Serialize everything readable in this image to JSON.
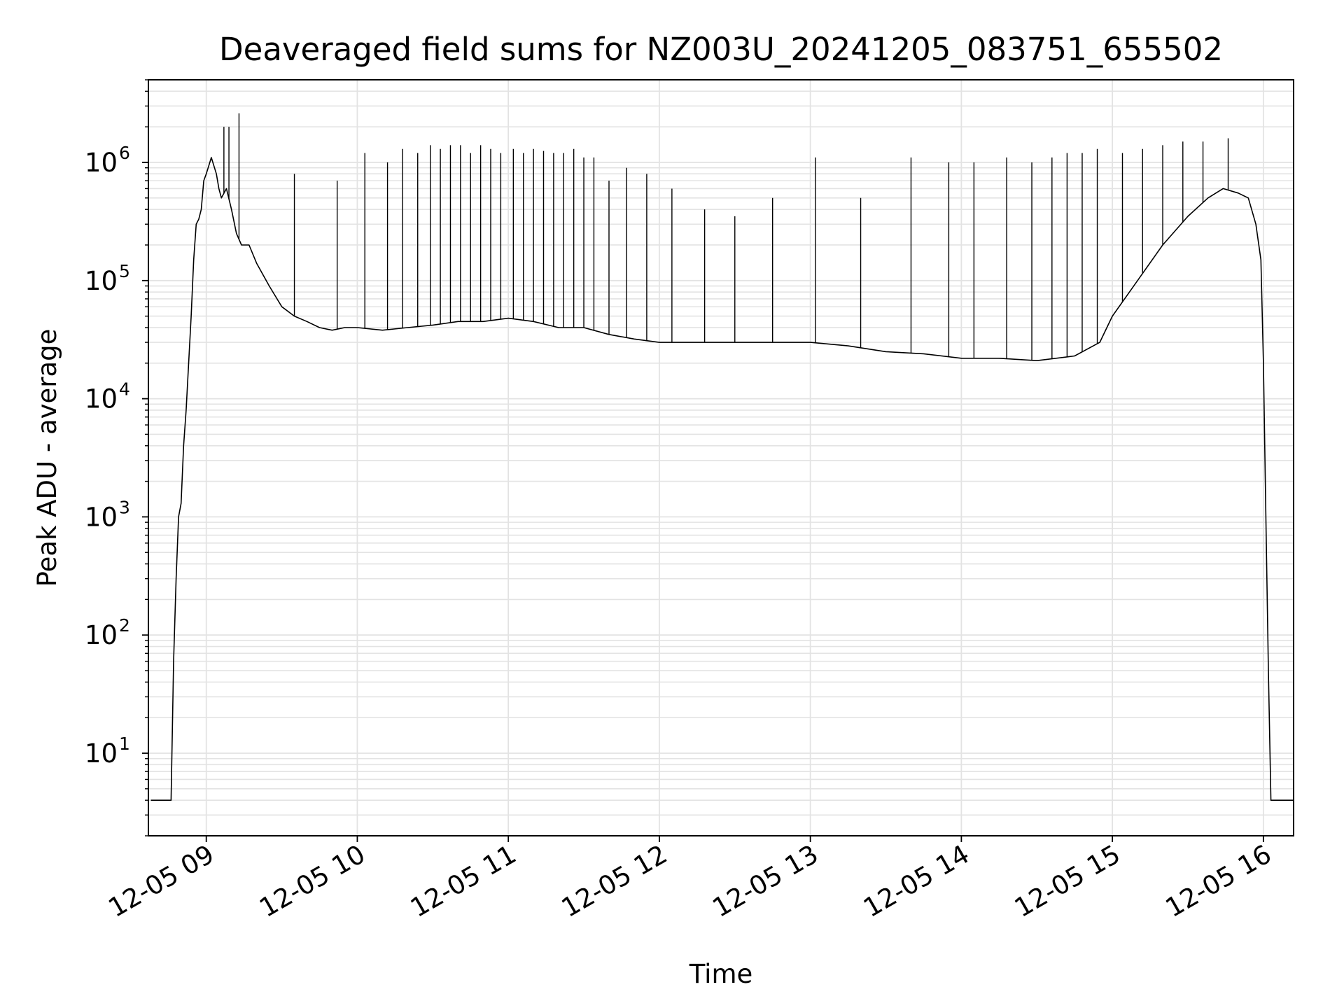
{
  "chart_data": {
    "type": "line",
    "title": "Deaveraged field sums for NZ003U_20241205_083751_655502",
    "xlabel": "Time",
    "ylabel": "Peak ADU - average",
    "yscale": "log",
    "ylim": [
      2,
      5000000
    ],
    "xlim": [
      "2024-12-05 08:37",
      "2024-12-05 16:12"
    ],
    "grid": true,
    "line_color": "#000000",
    "grid_color": "#e3e3e3",
    "x_ticks": [
      {
        "value": "2024-12-05 09:00",
        "label": "12-05 09"
      },
      {
        "value": "2024-12-05 10:00",
        "label": "12-05 10"
      },
      {
        "value": "2024-12-05 11:00",
        "label": "12-05 11"
      },
      {
        "value": "2024-12-05 12:00",
        "label": "12-05 12"
      },
      {
        "value": "2024-12-05 13:00",
        "label": "12-05 13"
      },
      {
        "value": "2024-12-05 14:00",
        "label": "12-05 14"
      },
      {
        "value": "2024-12-05 15:00",
        "label": "12-05 15"
      },
      {
        "value": "2024-12-05 16:00",
        "label": "12-05 16"
      }
    ],
    "y_ticks": [
      {
        "value": 10,
        "base": "10",
        "exp": "1"
      },
      {
        "value": 100,
        "base": "10",
        "exp": "2"
      },
      {
        "value": 1000,
        "base": "10",
        "exp": "3"
      },
      {
        "value": 10000,
        "base": "10",
        "exp": "4"
      },
      {
        "value": 100000,
        "base": "10",
        "exp": "5"
      },
      {
        "value": 1000000,
        "base": "10",
        "exp": "6"
      }
    ],
    "series": [
      {
        "x": [
          "2024-12-05 08:38",
          "2024-12-05 08:46",
          "2024-12-05 08:47",
          "2024-12-05 08:48",
          "2024-12-05 08:49",
          "2024-12-05 08:50",
          "2024-12-05 08:51",
          "2024-12-05 08:52",
          "2024-12-05 08:53",
          "2024-12-05 08:54",
          "2024-12-05 08:55",
          "2024-12-05 08:56",
          "2024-12-05 08:57",
          "2024-12-05 08:58",
          "2024-12-05 08:59",
          "2024-12-05 09:00",
          "2024-12-05 09:02",
          "2024-12-05 09:04",
          "2024-12-05 09:05",
          "2024-12-05 09:06",
          "2024-12-05 09:08",
          "2024-12-05 09:10",
          "2024-12-05 09:12",
          "2024-12-05 09:14",
          "2024-12-05 09:17",
          "2024-12-05 09:20",
          "2024-12-05 09:25",
          "2024-12-05 09:30",
          "2024-12-05 09:35",
          "2024-12-05 09:40",
          "2024-12-05 09:45",
          "2024-12-05 09:50",
          "2024-12-05 09:55",
          "2024-12-05 10:00",
          "2024-12-05 10:10",
          "2024-12-05 10:20",
          "2024-12-05 10:30",
          "2024-12-05 10:40",
          "2024-12-05 10:50",
          "2024-12-05 11:00",
          "2024-12-05 11:10",
          "2024-12-05 11:20",
          "2024-12-05 11:30",
          "2024-12-05 11:40",
          "2024-12-05 11:50",
          "2024-12-05 12:00",
          "2024-12-05 12:15",
          "2024-12-05 12:30",
          "2024-12-05 12:45",
          "2024-12-05 13:00",
          "2024-12-05 13:15",
          "2024-12-05 13:30",
          "2024-12-05 13:45",
          "2024-12-05 14:00",
          "2024-12-05 14:15",
          "2024-12-05 14:30",
          "2024-12-05 14:45",
          "2024-12-05 14:55",
          "2024-12-05 15:00",
          "2024-12-05 15:10",
          "2024-12-05 15:20",
          "2024-12-05 15:30",
          "2024-12-05 15:38",
          "2024-12-05 15:44",
          "2024-12-05 15:50",
          "2024-12-05 15:54",
          "2024-12-05 15:57",
          "2024-12-05 15:59",
          "2024-12-05 16:00",
          "2024-12-05 16:01",
          "2024-12-05 16:02",
          "2024-12-05 16:03",
          "2024-12-05 16:04",
          "2024-12-05 16:12"
        ],
        "y": [
          4,
          4,
          60,
          300,
          1000,
          1300,
          4000,
          8000,
          20000,
          50000,
          150000,
          300000,
          330000,
          400000,
          700000,
          800000,
          1100000,
          800000,
          600000,
          500000,
          600000,
          400000,
          250000,
          200000,
          200000,
          140000,
          90000,
          60000,
          50000,
          45000,
          40000,
          38000,
          40000,
          40000,
          38000,
          40000,
          42000,
          45000,
          45000,
          48000,
          45000,
          40000,
          40000,
          35000,
          32000,
          30000,
          30000,
          30000,
          30000,
          30000,
          28000,
          25000,
          24000,
          22000,
          22000,
          21000,
          23000,
          30000,
          50000,
          100000,
          200000,
          350000,
          500000,
          600000,
          550000,
          500000,
          300000,
          150000,
          20000,
          1000,
          50,
          4,
          4,
          4
        ]
      },
      {
        "x": [
          "2024-12-05 09:07",
          "2024-12-05 09:09",
          "2024-12-05 09:13",
          "2024-12-05 09:35",
          "2024-12-05 09:52",
          "2024-12-05 10:03",
          "2024-12-05 10:12",
          "2024-12-05 10:18",
          "2024-12-05 10:24",
          "2024-12-05 10:29",
          "2024-12-05 10:33",
          "2024-12-05 10:37",
          "2024-12-05 10:41",
          "2024-12-05 10:45",
          "2024-12-05 10:49",
          "2024-12-05 10:53",
          "2024-12-05 10:57",
          "2024-12-05 11:02",
          "2024-12-05 11:06",
          "2024-12-05 11:10",
          "2024-12-05 11:14",
          "2024-12-05 11:18",
          "2024-12-05 11:22",
          "2024-12-05 11:26",
          "2024-12-05 11:30",
          "2024-12-05 11:34",
          "2024-12-05 11:40",
          "2024-12-05 11:47",
          "2024-12-05 11:55",
          "2024-12-05 12:05",
          "2024-12-05 12:18",
          "2024-12-05 12:30",
          "2024-12-05 12:45",
          "2024-12-05 13:02",
          "2024-12-05 13:20",
          "2024-12-05 13:40",
          "2024-12-05 13:55",
          "2024-12-05 14:05",
          "2024-12-05 14:18",
          "2024-12-05 14:28",
          "2024-12-05 14:36",
          "2024-12-05 14:42",
          "2024-12-05 14:48",
          "2024-12-05 14:54",
          "2024-12-05 15:04",
          "2024-12-05 15:12",
          "2024-12-05 15:20",
          "2024-12-05 15:28",
          "2024-12-05 15:36",
          "2024-12-05 15:46"
        ],
        "y": [
          2000000,
          2000000,
          2600000,
          800000,
          700000,
          1200000,
          1000000,
          1300000,
          1200000,
          1400000,
          1300000,
          1400000,
          1400000,
          1200000,
          1400000,
          1300000,
          1200000,
          1300000,
          1200000,
          1300000,
          1250000,
          1200000,
          1200000,
          1300000,
          1100000,
          1100000,
          700000,
          900000,
          800000,
          600000,
          400000,
          350000,
          500000,
          1100000,
          500000,
          1100000,
          1000000,
          1000000,
          1100000,
          1000000,
          1100000,
          1200000,
          1200000,
          1300000,
          1200000,
          1300000,
          1400000,
          1500000,
          1500000,
          1600000
        ]
      }
    ]
  }
}
